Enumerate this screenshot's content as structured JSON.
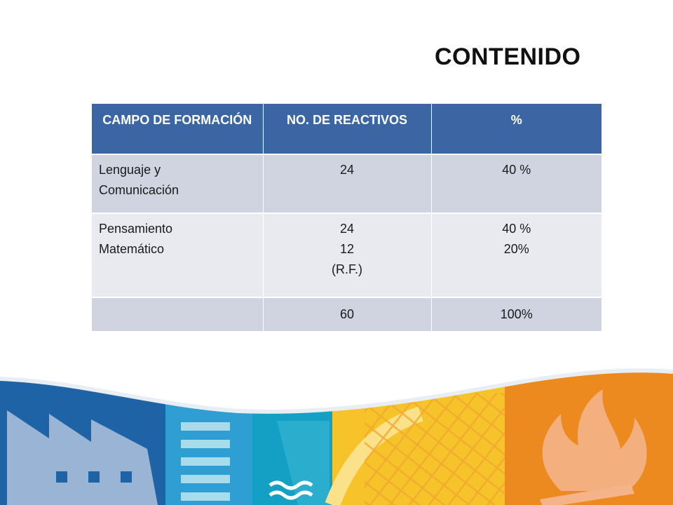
{
  "slide": {
    "title": "CONTENIDO"
  },
  "table": {
    "headers": [
      "CAMPO DE FORMACIÓN",
      "NO. DE REACTIVOS",
      "%"
    ],
    "rows": [
      {
        "campo": [
          "Lenguaje y",
          "Comunicación"
        ],
        "reactivos": [
          "24"
        ],
        "porcentaje": [
          "40 %"
        ]
      },
      {
        "campo": [
          "Pensamiento",
          "Matemático"
        ],
        "reactivos": [
          "24",
          "12",
          "(R.F.)"
        ],
        "porcentaje": [
          "40 %",
          "20%"
        ]
      },
      {
        "campo": [
          ""
        ],
        "reactivos": [
          "60"
        ],
        "porcentaje": [
          "100%"
        ]
      }
    ]
  },
  "colors": {
    "header_bg": "#3b66a3",
    "row_dark": "#cfd4e0",
    "row_light": "#e8eaf0",
    "banner_blue": "#1d63a6",
    "banner_teal": "#14a0c4",
    "banner_yellow": "#f6c32b",
    "banner_orange": "#ec8a1f"
  },
  "icons": [
    "factory-icon",
    "water-waves-icon",
    "fire-icon"
  ]
}
